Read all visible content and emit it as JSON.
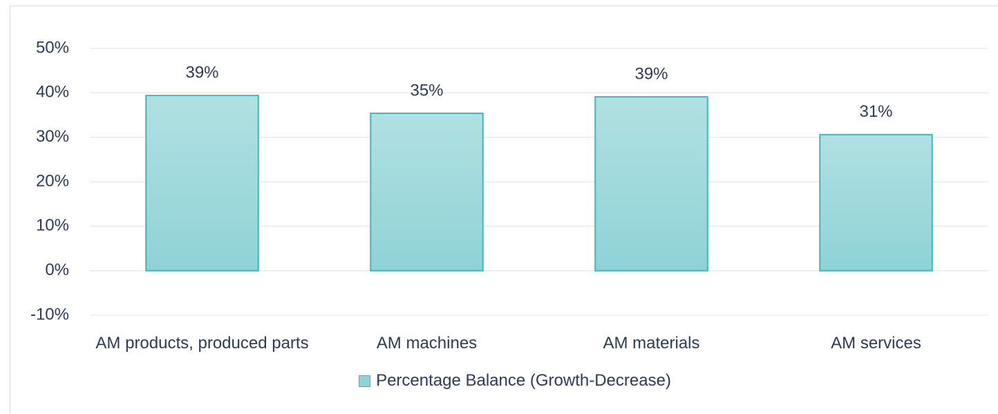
{
  "chart_data": {
    "type": "bar",
    "categories": [
      "AM products, produced parts",
      "AM machines",
      "AM materials",
      "AM services"
    ],
    "series": [
      {
        "name": "Percentage Balance (Growth-Decrease)",
        "color": "#8fd3d6",
        "values": [
          39.4,
          35.4,
          39.1,
          30.6
        ],
        "value_labels": [
          "39%",
          "35%",
          "39%",
          "31%"
        ]
      }
    ],
    "ylim": [
      -10,
      50
    ],
    "yticks": [
      {
        "value": -10,
        "label": "-10%"
      },
      {
        "value": 0,
        "label": "0%"
      },
      {
        "value": 10,
        "label": "10%"
      },
      {
        "value": 20,
        "label": "20%"
      },
      {
        "value": 30,
        "label": "30%"
      },
      {
        "value": 40,
        "label": "40%"
      },
      {
        "value": 50,
        "label": "50%"
      }
    ],
    "grid": true,
    "legend": "bottom"
  }
}
